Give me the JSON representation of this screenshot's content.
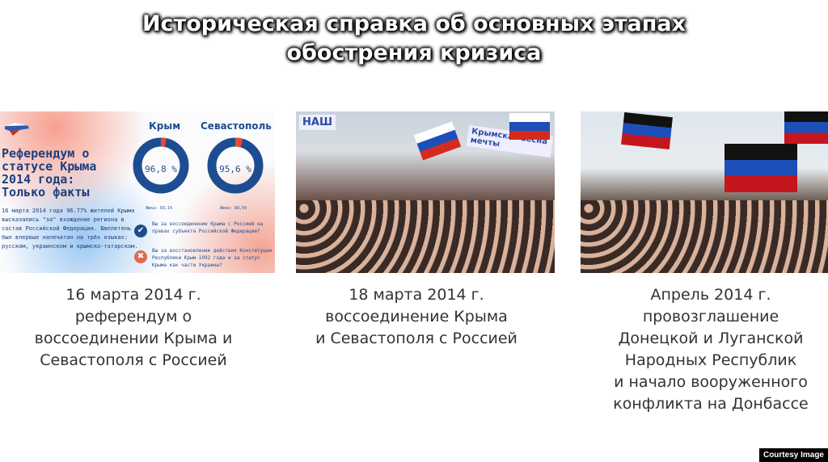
{
  "title": {
    "line1": "Историческая справка об основных этапах",
    "line2": "обострения кризиса"
  },
  "infographic": {
    "heading": [
      "Референдум о",
      "статусе Крыма",
      "2014 года:",
      "Только факты"
    ],
    "text": "16 марта 2014 года 96.77% жителей Крыма высказались \"за\" вхождение региона в состав Российской Федерации. Бюллетень был впервые напечатан на трёх языках: русском, украинском и крымско-татарском.",
    "crimea": {
      "label": "Крым",
      "value": "96,8 %",
      "percent": 96.8,
      "turnout": "Явка: 83,1%"
    },
    "sevastopol": {
      "label": "Севастополь",
      "value": "95,6 %",
      "percent": 95.6,
      "turnout": "Явка: 89,5%"
    },
    "question_yes": "Вы за воссоединение Крыма с Россией на правах субъекта Российской Федерации?",
    "question_no": "Вы за восстановление действия Конституции Республики Крым 1992 года и за статус Крыма как части Украины?",
    "colors": {
      "blue": "#1d4d91",
      "red": "#e8492f"
    }
  },
  "photo2": {
    "sign1": "НАШ",
    "sign2": "Крымская весна мечты"
  },
  "captions": [
    [
      "16 марта 2014 г.",
      "референдум о",
      "воссоединении Крыма и",
      "Севастополя с Россией"
    ],
    [
      "18 марта 2014 г.",
      "воссоединение Крыма",
      "и Севастополя с Россией"
    ],
    [
      "Апрель 2014 г.",
      "провозглашение",
      "Донецкой и Луганской",
      "Народных Республик",
      "и начало вооруженного",
      "конфликта на Донбассе"
    ]
  ],
  "courtesy": "Courtesy Image"
}
